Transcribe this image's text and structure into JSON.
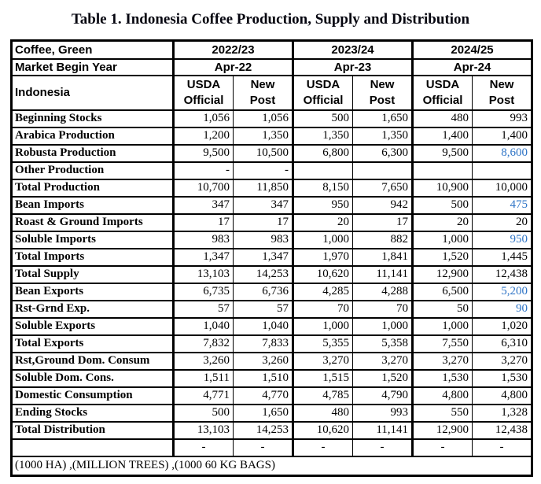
{
  "title": "Table 1. Indonesia Coffee Production, Supply and Distribution",
  "colors": {
    "value_blue": "#2e74c6",
    "border_black": "#000000",
    "text_black": "#000000",
    "background": "#ffffff"
  },
  "header": {
    "commodity_label": "Coffee, Green",
    "market_year_label": "Market Begin Year",
    "country_label": "Indonesia",
    "years": [
      "2022/23",
      "2023/24",
      "2024/25"
    ],
    "market_begin": [
      "Apr-22",
      "Apr-23",
      "Apr-24"
    ],
    "sub_columns": [
      [
        "USDA",
        "Official"
      ],
      [
        "New",
        "Post"
      ],
      [
        "USDA",
        "Official"
      ],
      [
        "New",
        "Post"
      ],
      [
        "USDA",
        "Official"
      ],
      [
        "New",
        "Post"
      ]
    ]
  },
  "rows": [
    {
      "label": "Beginning Stocks",
      "values": [
        "1,056",
        "1,056",
        "500",
        "1,650",
        "480",
        "993"
      ],
      "blue": []
    },
    {
      "label": "Arabica Production",
      "values": [
        "1,200",
        "1,350",
        "1,350",
        "1,350",
        "1,400",
        "1,400"
      ],
      "blue": []
    },
    {
      "label": "Robusta Production",
      "values": [
        "9,500",
        "10,500",
        "6,800",
        "6,300",
        "9,500",
        "8,600"
      ],
      "blue": [
        5
      ]
    },
    {
      "label": "Other Production",
      "values": [
        "-",
        "-",
        "",
        "",
        "",
        ""
      ],
      "blue": []
    },
    {
      "label": "Total Production",
      "values": [
        "10,700",
        "11,850",
        "8,150",
        "7,650",
        "10,900",
        "10,000"
      ],
      "blue": []
    },
    {
      "label": "Bean Imports",
      "values": [
        "347",
        "347",
        "950",
        "942",
        "500",
        "475"
      ],
      "blue": [
        5
      ]
    },
    {
      "label": "Roast & Ground Imports",
      "values": [
        "17",
        "17",
        "20",
        "17",
        "20",
        "20"
      ],
      "blue": []
    },
    {
      "label": "Soluble Imports",
      "values": [
        "983",
        "983",
        "1,000",
        "882",
        "1,000",
        "950"
      ],
      "blue": [
        5
      ]
    },
    {
      "label": "Total Imports",
      "values": [
        "1,347",
        "1,347",
        "1,970",
        "1,841",
        "1,520",
        "1,445"
      ],
      "blue": []
    },
    {
      "label": "Total Supply",
      "values": [
        "13,103",
        "14,253",
        "10,620",
        "11,141",
        "12,900",
        "12,438"
      ],
      "blue": []
    },
    {
      "label": "Bean Exports",
      "values": [
        "6,735",
        "6,736",
        "4,285",
        "4,288",
        "6,500",
        "5,200"
      ],
      "blue": [
        5
      ]
    },
    {
      "label": "Rst-Grnd Exp.",
      "values": [
        "57",
        "57",
        "70",
        "70",
        "50",
        "90"
      ],
      "blue": [
        5
      ]
    },
    {
      "label": "Soluble Exports",
      "values": [
        "1,040",
        "1,040",
        "1,000",
        "1,000",
        "1,000",
        "1,020"
      ],
      "blue": []
    },
    {
      "label": "Total Exports",
      "values": [
        "7,832",
        "7,833",
        "5,355",
        "5,358",
        "7,550",
        "6,310"
      ],
      "blue": []
    },
    {
      "label": "Rst,Ground Dom. Consum",
      "values": [
        "3,260",
        "3,260",
        "3,270",
        "3,270",
        "3,270",
        "3,270"
      ],
      "blue": []
    },
    {
      "label": "Soluble Dom. Cons.",
      "values": [
        "1,511",
        "1,510",
        "1,515",
        "1,520",
        "1,530",
        "1,530"
      ],
      "blue": []
    },
    {
      "label": "Domestic Consumption",
      "values": [
        "4,771",
        "4,770",
        "4,785",
        "4,790",
        "4,800",
        "4,800"
      ],
      "blue": []
    },
    {
      "label": "Ending Stocks",
      "values": [
        "500",
        "1,650",
        "480",
        "993",
        "550",
        "1,328"
      ],
      "blue": []
    },
    {
      "label": "Total Distribution",
      "values": [
        "13,103",
        "14,253",
        "10,620",
        "11,141",
        "12,900",
        "12,438"
      ],
      "blue": []
    },
    {
      "label": "",
      "values": [
        "-",
        "-",
        "-",
        "-",
        "-",
        "-"
      ],
      "blue": [],
      "align": "center"
    }
  ],
  "footer_note": "(1000 HA) ,(MILLION TREES) ,(1000 60 KG BAGS)"
}
